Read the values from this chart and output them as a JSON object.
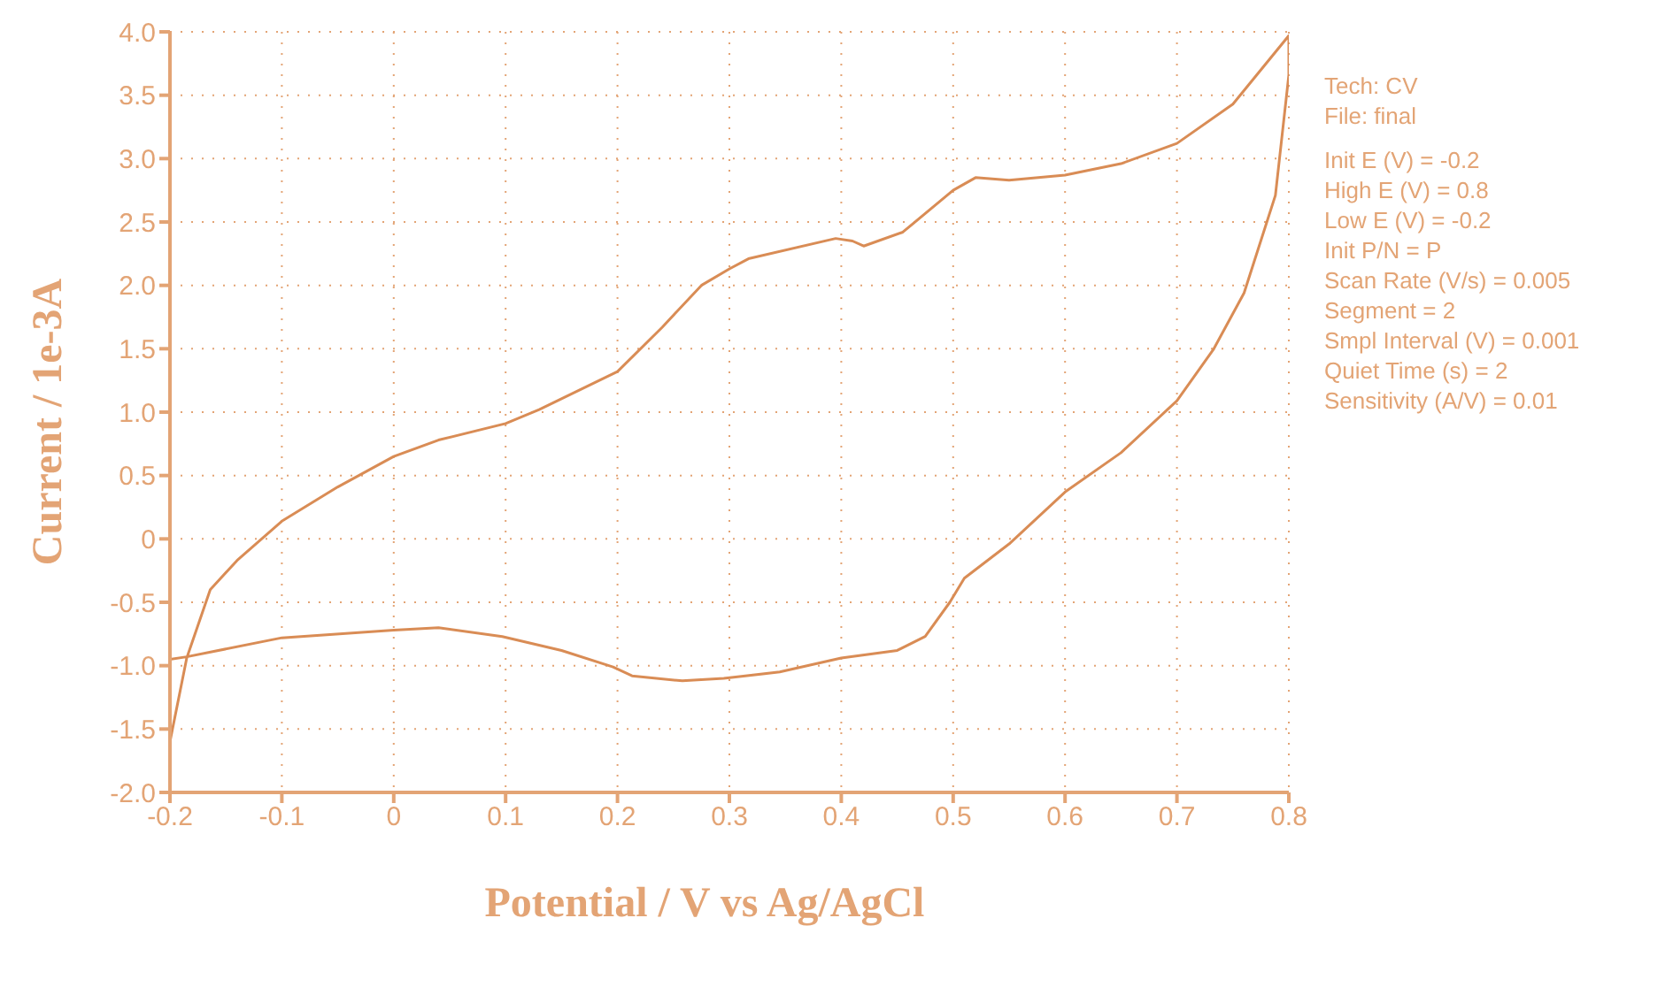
{
  "chart_data": {
    "type": "line",
    "xlabel": "Potential / V vs Ag/AgCl",
    "ylabel": "Current / 1e-3A",
    "x": [
      -0.2,
      -0.185,
      -0.164,
      -0.14,
      -0.1,
      -0.05,
      0.0,
      0.04,
      0.1,
      0.13,
      0.2,
      0.24,
      0.275,
      0.3,
      0.317,
      0.395,
      0.41,
      0.42,
      0.455,
      0.5,
      0.52,
      0.55,
      0.6,
      0.65,
      0.7,
      0.75,
      0.8,
      0.8,
      0.788,
      0.76,
      0.733,
      0.7,
      0.65,
      0.6,
      0.55,
      0.51,
      0.497,
      0.475,
      0.45,
      0.4,
      0.345,
      0.295,
      0.258,
      0.213,
      0.196,
      0.15,
      0.097,
      0.04,
      0.0,
      -0.1,
      -0.185,
      -0.2
    ],
    "series": [
      {
        "color": "#d98c55",
        "values": [
          -1.6,
          -0.94,
          -0.4,
          -0.17,
          0.14,
          0.41,
          0.65,
          0.78,
          0.91,
          1.02,
          1.32,
          1.67,
          2.0,
          2.13,
          2.21,
          2.37,
          2.35,
          2.31,
          2.42,
          2.75,
          2.85,
          2.83,
          2.87,
          2.96,
          3.12,
          3.43,
          3.97,
          3.66,
          2.71,
          1.94,
          1.5,
          1.09,
          0.68,
          0.37,
          -0.04,
          -0.31,
          -0.5,
          -0.77,
          -0.88,
          -0.94,
          -1.05,
          -1.1,
          -1.12,
          -1.08,
          -1.01,
          -0.88,
          -0.77,
          -0.7,
          -0.72,
          -0.78,
          -0.93,
          -0.95
        ]
      }
    ],
    "xlim": [
      -0.2,
      0.8
    ],
    "xticks": [
      -0.2,
      -0.1,
      0,
      0.1,
      0.2,
      0.3,
      0.4,
      0.5,
      0.6,
      0.7,
      0.8
    ],
    "ylim": [
      -2,
      4
    ],
    "yticks": [
      {
        "value": -2,
        "label": "-2.0"
      },
      {
        "value": -1.5,
        "label": "-1.5"
      },
      {
        "value": -1,
        "label": "-1.0"
      },
      {
        "value": -0.5,
        "label": "-0.5"
      },
      0,
      {
        "value": 0.5,
        "label": "0.5"
      },
      {
        "value": 1,
        "label": "1.0"
      },
      {
        "value": 1.5,
        "label": "1.5"
      },
      {
        "value": 2,
        "label": "2.0"
      },
      {
        "value": 2.5,
        "label": "2.5"
      },
      {
        "value": 3,
        "label": "3.0"
      },
      {
        "value": 3.5,
        "label": "3.5"
      },
      {
        "value": 4,
        "label": "4.0"
      }
    ],
    "grid": true,
    "annotations": [
      "Tech: CV",
      "File: final",
      "Init E (V) = -0.2",
      "High E (V) = 0.8",
      "Low E (V) = -0.2",
      "Init P/N = P",
      "Scan Rate (V/s) = 0.005",
      "Segment = 2",
      "Smpl Interval (V) = 0.001",
      "Quiet Time (s) = 2",
      "Sensitivity (A/V) = 0.01"
    ]
  }
}
